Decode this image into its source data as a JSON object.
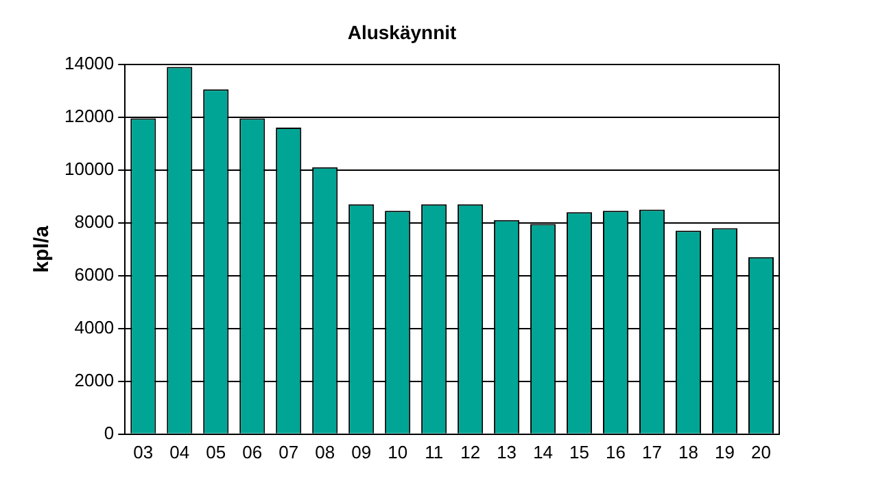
{
  "chart_data": {
    "type": "bar",
    "title": "Aluskäynnit",
    "ylabel": "kpl/a",
    "categories": [
      "03",
      "04",
      "05",
      "06",
      "07",
      "08",
      "09",
      "10",
      "11",
      "12",
      "13",
      "14",
      "15",
      "16",
      "17",
      "18",
      "19",
      "20"
    ],
    "values": [
      11950,
      13900,
      13050,
      11950,
      11600,
      10100,
      8700,
      8450,
      8700,
      8700,
      8100,
      7950,
      8400,
      8450,
      8500,
      7700,
      7800,
      6700
    ],
    "color": "#00a595",
    "ylim": [
      0,
      14000
    ],
    "yticks": [
      0,
      2000,
      4000,
      6000,
      8000,
      10000,
      12000,
      14000
    ],
    "grid": "y",
    "legend": false
  }
}
